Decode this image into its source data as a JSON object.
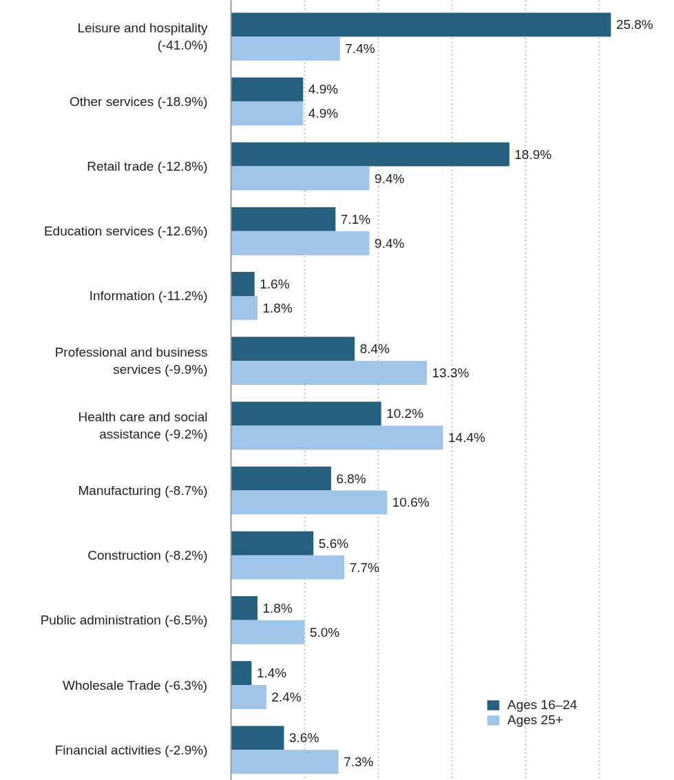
{
  "chart_data": {
    "type": "bar",
    "orientation": "horizontal",
    "categories": [
      "Leisure and hospitality (-41.0%)",
      "Other services (-18.9%)",
      "Retail trade (-12.8%)",
      "Education services (-12.6%)",
      "Information (-11.2%)",
      "Professional and business services (-9.9%)",
      "Health care and social assistance (-9.2%)",
      "Manufacturing (-8.7%)",
      "Construction (-8.2%)",
      "Public administration (-6.5%)",
      "Wholesale Trade (-6.3%)",
      "Financial activities (-2.9%)"
    ],
    "series": [
      {
        "name": "Ages 16–24",
        "color": "#25607f",
        "values": [
          25.8,
          4.9,
          18.9,
          7.1,
          1.6,
          8.4,
          10.2,
          6.8,
          5.6,
          1.8,
          1.4,
          3.6
        ],
        "value_labels": [
          "25.8%",
          "4.9%",
          "18.9%",
          "7.1%",
          "1.6%",
          "8.4%",
          "10.2%",
          "6.8%",
          "5.6%",
          "1.8%",
          "1.4%",
          "3.6%"
        ]
      },
      {
        "name": "Ages 25+",
        "color": "#9fc5e8",
        "values": [
          7.4,
          4.9,
          9.4,
          9.4,
          1.8,
          13.3,
          14.4,
          10.6,
          7.7,
          5.0,
          2.4,
          7.3
        ],
        "value_labels": [
          "7.4%",
          "4.9%",
          "9.4%",
          "9.4%",
          "1.8%",
          "13.3%",
          "14.4%",
          "10.6%",
          "7.7%",
          "5.0%",
          "2.4%",
          "7.3%"
        ]
      }
    ],
    "xticks": [
      {
        "value": 0,
        "label": null
      },
      {
        "value": 5,
        "label": null
      },
      {
        "value": 10,
        "label": null
      },
      {
        "value": 15,
        "label": null
      },
      {
        "value": 20,
        "label": null
      },
      {
        "value": 25,
        "label": null
      }
    ],
    "grid": "x",
    "tick_labels": "y",
    "legend": "bottom right"
  }
}
